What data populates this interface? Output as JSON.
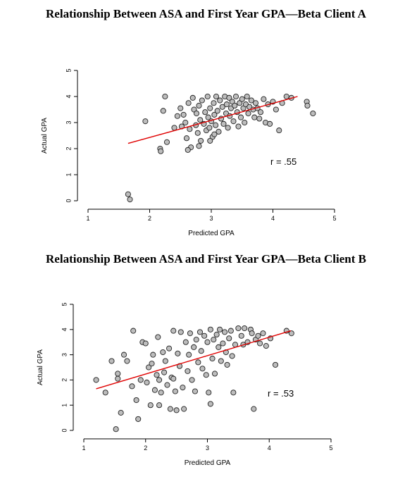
{
  "chart_data": [
    {
      "type": "scatter",
      "title": "Relationship Between ASA and First Year GPA—Beta Client A",
      "xlabel": "Predicted GPA",
      "ylabel": "Actual GPA",
      "xlim": [
        1,
        5
      ],
      "ylim": [
        0,
        5
      ],
      "xticks": [
        1,
        2,
        3,
        4,
        5
      ],
      "yticks": [
        0,
        1,
        2,
        3,
        4,
        5
      ],
      "annotation": "r = .55",
      "marker_color": "#bdbdbd",
      "fit_line_color": "#e00000",
      "fit_line": [
        [
          1.65,
          2.2
        ],
        [
          4.4,
          4.0
        ]
      ],
      "points": [
        [
          1.65,
          0.25
        ],
        [
          1.68,
          0.05
        ],
        [
          1.93,
          3.05
        ],
        [
          2.17,
          2.0
        ],
        [
          2.18,
          1.9
        ],
        [
          2.22,
          3.45
        ],
        [
          2.25,
          4.0
        ],
        [
          2.28,
          2.25
        ],
        [
          2.4,
          2.8
        ],
        [
          2.45,
          3.25
        ],
        [
          2.5,
          3.55
        ],
        [
          2.52,
          2.85
        ],
        [
          2.55,
          3.3
        ],
        [
          2.58,
          3.0
        ],
        [
          2.6,
          2.4
        ],
        [
          2.63,
          3.75
        ],
        [
          2.65,
          2.75
        ],
        [
          2.67,
          2.05
        ],
        [
          2.7,
          3.95
        ],
        [
          2.72,
          3.5
        ],
        [
          2.75,
          2.9
        ],
        [
          2.76,
          3.35
        ],
        [
          2.78,
          2.6
        ],
        [
          2.8,
          3.65
        ],
        [
          2.82,
          3.1
        ],
        [
          2.83,
          2.3
        ],
        [
          2.85,
          3.85
        ],
        [
          2.88,
          2.95
        ],
        [
          2.9,
          3.4
        ],
        [
          2.92,
          2.7
        ],
        [
          2.94,
          4.0
        ],
        [
          2.95,
          3.2
        ],
        [
          2.97,
          2.8
        ],
        [
          2.98,
          3.55
        ],
        [
          3.0,
          3.05
        ],
        [
          3.02,
          2.45
        ],
        [
          3.04,
          3.75
        ],
        [
          3.05,
          3.3
        ],
        [
          3.07,
          2.9
        ],
        [
          3.08,
          4.0
        ],
        [
          3.1,
          3.45
        ],
        [
          3.12,
          2.65
        ],
        [
          3.14,
          3.85
        ],
        [
          3.16,
          3.15
        ],
        [
          3.18,
          3.6
        ],
        [
          3.2,
          2.95
        ],
        [
          3.22,
          4.0
        ],
        [
          3.24,
          3.35
        ],
        [
          3.25,
          3.7
        ],
        [
          3.27,
          2.8
        ],
        [
          3.29,
          3.95
        ],
        [
          3.3,
          3.25
        ],
        [
          3.32,
          3.55
        ],
        [
          3.34,
          3.8
        ],
        [
          3.36,
          3.05
        ],
        [
          3.38,
          3.65
        ],
        [
          3.4,
          4.0
        ],
        [
          3.42,
          3.4
        ],
        [
          3.44,
          2.85
        ],
        [
          3.46,
          3.75
        ],
        [
          3.48,
          3.2
        ],
        [
          3.5,
          3.9
        ],
        [
          3.52,
          3.55
        ],
        [
          3.54,
          3.0
        ],
        [
          3.56,
          3.7
        ],
        [
          3.58,
          4.0
        ],
        [
          3.6,
          3.35
        ],
        [
          3.62,
          3.6
        ],
        [
          3.65,
          3.85
        ],
        [
          3.68,
          3.5
        ],
        [
          3.7,
          3.2
        ],
        [
          3.72,
          3.75
        ],
        [
          3.75,
          3.55
        ],
        [
          3.78,
          3.15
        ],
        [
          3.8,
          3.4
        ],
        [
          3.85,
          3.9
        ],
        [
          3.88,
          3.0
        ],
        [
          3.92,
          3.7
        ],
        [
          3.95,
          2.95
        ],
        [
          4.0,
          3.8
        ],
        [
          4.05,
          3.5
        ],
        [
          4.1,
          2.7
        ],
        [
          4.15,
          3.75
        ],
        [
          4.22,
          4.0
        ],
        [
          4.3,
          3.95
        ],
        [
          4.55,
          3.8
        ],
        [
          4.56,
          3.65
        ],
        [
          4.65,
          3.35
        ],
        [
          2.98,
          2.3
        ],
        [
          3.05,
          2.55
        ],
        [
          2.62,
          1.95
        ],
        [
          2.8,
          2.1
        ]
      ]
    },
    {
      "type": "scatter",
      "title": "Relationship Between ASA and First Year GPA—Beta Client B",
      "xlabel": "Predicted GPA",
      "ylabel": "Actual GPA",
      "xlim": [
        1,
        5
      ],
      "ylim": [
        0,
        5
      ],
      "xticks": [
        1,
        2,
        3,
        4,
        5
      ],
      "yticks": [
        0,
        1,
        2,
        3,
        4,
        5
      ],
      "annotation": "r = .53",
      "marker_color": "#bdbdbd",
      "fit_line_color": "#e00000",
      "fit_line": [
        [
          1.2,
          1.65
        ],
        [
          4.35,
          3.95
        ]
      ],
      "points": [
        [
          1.2,
          2.0
        ],
        [
          1.35,
          1.5
        ],
        [
          1.45,
          2.75
        ],
        [
          1.55,
          2.25
        ],
        [
          1.55,
          2.05
        ],
        [
          1.52,
          0.05
        ],
        [
          1.6,
          0.7
        ],
        [
          1.65,
          3.0
        ],
        [
          1.7,
          2.75
        ],
        [
          1.78,
          1.75
        ],
        [
          1.8,
          3.95
        ],
        [
          1.85,
          1.2
        ],
        [
          1.88,
          0.45
        ],
        [
          1.92,
          2.0
        ],
        [
          1.95,
          3.5
        ],
        [
          2.0,
          3.45
        ],
        [
          2.02,
          1.9
        ],
        [
          2.05,
          2.5
        ],
        [
          2.08,
          1.0
        ],
        [
          2.1,
          2.65
        ],
        [
          2.12,
          3.0
        ],
        [
          2.15,
          1.6
        ],
        [
          2.18,
          2.2
        ],
        [
          2.2,
          3.7
        ],
        [
          2.22,
          2.0
        ],
        [
          2.25,
          1.5
        ],
        [
          2.28,
          3.1
        ],
        [
          2.3,
          2.3
        ],
        [
          2.32,
          2.75
        ],
        [
          2.35,
          1.8
        ],
        [
          2.38,
          3.25
        ],
        [
          2.4,
          0.85
        ],
        [
          2.42,
          2.1
        ],
        [
          2.45,
          3.95
        ],
        [
          2.48,
          1.55
        ],
        [
          2.5,
          0.8
        ],
        [
          2.52,
          3.05
        ],
        [
          2.55,
          2.55
        ],
        [
          2.57,
          3.9
        ],
        [
          2.6,
          1.7
        ],
        [
          2.62,
          0.85
        ],
        [
          2.65,
          3.5
        ],
        [
          2.68,
          2.35
        ],
        [
          2.7,
          3.0
        ],
        [
          2.72,
          3.85
        ],
        [
          2.75,
          2.0
        ],
        [
          2.78,
          3.3
        ],
        [
          2.8,
          1.55
        ],
        [
          2.82,
          3.6
        ],
        [
          2.85,
          2.7
        ],
        [
          2.88,
          3.9
        ],
        [
          2.9,
          3.15
        ],
        [
          2.92,
          2.45
        ],
        [
          2.95,
          3.75
        ],
        [
          2.98,
          2.2
        ],
        [
          3.0,
          3.5
        ],
        [
          3.02,
          1.5
        ],
        [
          3.05,
          4.0
        ],
        [
          3.08,
          2.85
        ],
        [
          3.1,
          3.6
        ],
        [
          3.12,
          2.25
        ],
        [
          3.15,
          3.8
        ],
        [
          3.18,
          3.3
        ],
        [
          3.2,
          4.0
        ],
        [
          3.22,
          2.75
        ],
        [
          3.25,
          3.45
        ],
        [
          3.28,
          3.9
        ],
        [
          3.3,
          3.1
        ],
        [
          3.32,
          2.6
        ],
        [
          3.35,
          3.65
        ],
        [
          3.38,
          3.95
        ],
        [
          3.4,
          2.95
        ],
        [
          3.45,
          3.4
        ],
        [
          3.5,
          4.05
        ],
        [
          3.55,
          3.75
        ],
        [
          3.58,
          3.4
        ],
        [
          3.6,
          4.05
        ],
        [
          3.65,
          3.5
        ],
        [
          3.7,
          4.0
        ],
        [
          3.72,
          3.85
        ],
        [
          3.75,
          0.85
        ],
        [
          3.78,
          3.6
        ],
        [
          3.82,
          3.75
        ],
        [
          3.85,
          3.45
        ],
        [
          3.9,
          3.85
        ],
        [
          3.95,
          3.35
        ],
        [
          4.02,
          3.65
        ],
        [
          4.1,
          2.6
        ],
        [
          4.28,
          3.95
        ],
        [
          4.36,
          3.85
        ],
        [
          3.42,
          1.5
        ],
        [
          3.05,
          1.05
        ],
        [
          2.45,
          2.05
        ],
        [
          2.22,
          1.0
        ]
      ]
    }
  ]
}
